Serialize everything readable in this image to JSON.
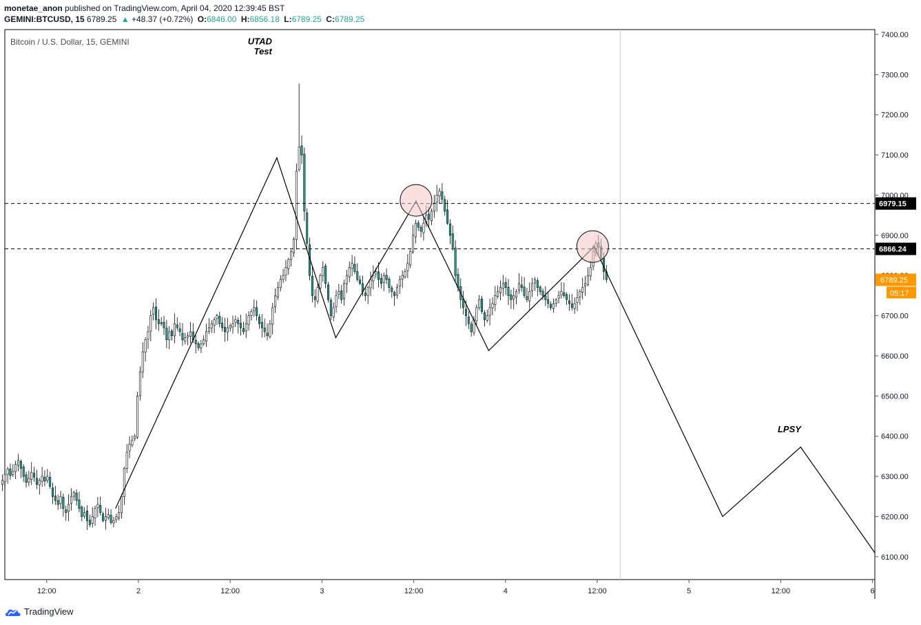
{
  "header": {
    "publisher": "monetae_anon",
    "published_text": "published on TradingView.com, April 04, 2020 12:39:45 BST",
    "symbol": "GEMINI:BTCUSD, 15",
    "last": "6789.25",
    "change": "+48.37 (+0.72%)",
    "o_label": "O:",
    "o_val": "6846.00",
    "h_label": "H:",
    "h_val": "6856.18",
    "l_label": "L:",
    "l_val": "6789.25",
    "c_label": "C:",
    "c_val": "6789.25"
  },
  "legend": "Bitcoin / U.S. Dollar, 15, GEMINI",
  "footer": {
    "brand": "TradingView"
  },
  "colors": {
    "up": "#26a69a",
    "down": "#ef5350",
    "candle_fill_up": "#ffffff",
    "line": "#000000",
    "marker_orange": "#ff9800",
    "circle_fill": "#f8c6c6"
  },
  "chart_data": {
    "type": "candlestick",
    "ylim": [
      6050,
      7420
    ],
    "y_ticks": [
      "7400.00",
      "7300.00",
      "7200.00",
      "7100.00",
      "7000.00",
      "6900.00",
      "6800.00",
      "6700.00",
      "6600.00",
      "6500.00",
      "6400.00",
      "6300.00",
      "6200.00",
      "6100.00"
    ],
    "x_ticks": [
      "12:00",
      "2",
      "12:00",
      "3",
      "12:00",
      "4",
      "12:00",
      "5",
      "12:00",
      "6"
    ],
    "x_tick_times": [
      -12,
      0,
      12,
      24,
      36,
      48,
      60,
      72,
      84,
      96
    ],
    "xlim": [
      -15,
      96.5
    ],
    "hlines": [
      {
        "value": 6979.15,
        "label": "6979.15"
      },
      {
        "value": 6866.24,
        "label": "6866.24"
      }
    ],
    "last_price": {
      "value": 6789.25,
      "label": "6789.25",
      "countdown": "05:17"
    },
    "vline_time": 63,
    "annotations": [
      {
        "text": "UTAD",
        "t": 14.3,
        "price": 7375
      },
      {
        "text": "Test",
        "t": 15.1,
        "price": 7350
      },
      {
        "text": "LPSY",
        "t": 83.6,
        "price": 6410
      }
    ],
    "circles": [
      {
        "t": 36.3,
        "price": 6987
      },
      {
        "t": 59.4,
        "price": 6872
      }
    ],
    "path": [
      {
        "t": -3.0,
        "price": 6220
      },
      {
        "t": 18.1,
        "price": 7093
      },
      {
        "t": 25.8,
        "price": 6645
      },
      {
        "t": 36.3,
        "price": 6985
      },
      {
        "t": 45.8,
        "price": 6613
      },
      {
        "t": 59.6,
        "price": 6872
      },
      {
        "t": 76.4,
        "price": 6200
      },
      {
        "t": 86.6,
        "price": 6373
      },
      {
        "t": 96.3,
        "price": 6110
      }
    ],
    "series": [
      {
        "name": "BTCUSD",
        "close": [
          6290,
          6305,
          6318,
          6302,
          6312,
          6330,
          6340,
          6320,
          6300,
          6285,
          6295,
          6310,
          6298,
          6280,
          6290,
          6300,
          6288,
          6300,
          6275,
          6250,
          6240,
          6230,
          6250,
          6220,
          6210,
          6230,
          6250,
          6260,
          6240,
          6220,
          6200,
          6210,
          6190,
          6180,
          6200,
          6220,
          6230,
          6210,
          6190,
          6200,
          6205,
          6185,
          6190,
          6200,
          6210,
          6250,
          6320,
          6360,
          6380,
          6390,
          6400,
          6500,
          6560,
          6610,
          6640,
          6660,
          6700,
          6720,
          6690,
          6680,
          6680,
          6670,
          6640,
          6660,
          6650,
          6680,
          6670,
          6660,
          6640,
          6645,
          6650,
          6660,
          6640,
          6630,
          6620,
          6630,
          6640,
          6660,
          6670,
          6680,
          6690,
          6700,
          6680,
          6670,
          6660,
          6670,
          6675,
          6680,
          6690,
          6680,
          6670,
          6660,
          6680,
          6700,
          6710,
          6720,
          6700,
          6680,
          6670,
          6660,
          6650,
          6680,
          6720,
          6750,
          6770,
          6790,
          6800,
          6820,
          6840,
          6860,
          6890,
          7060,
          7120,
          7100,
          6960,
          6880,
          6800,
          6750,
          6740,
          6770,
          6800,
          6820,
          6780,
          6740,
          6700,
          6720,
          6750,
          6760,
          6740,
          6780,
          6800,
          6820,
          6830,
          6810,
          6790,
          6780,
          6760,
          6750,
          6770,
          6790,
          6800,
          6810,
          6790,
          6780,
          6800,
          6790,
          6770,
          6760,
          6750,
          6770,
          6790,
          6800,
          6810,
          6830,
          6860,
          6900,
          6930,
          6920,
          6910,
          6930,
          6950,
          6940,
          6960,
          6980,
          7000,
          7010,
          6990,
          6960,
          6930,
          6900,
          6870,
          6800,
          6770,
          6740,
          6720,
          6700,
          6680,
          6660,
          6690,
          6720,
          6740,
          6710,
          6690,
          6700,
          6720,
          6730,
          6750,
          6760,
          6770,
          6780,
          6770,
          6750,
          6740,
          6750,
          6760,
          6780,
          6770,
          6750,
          6740,
          6760,
          6780,
          6790,
          6770,
          6760,
          6750,
          6740,
          6730,
          6720,
          6730,
          6740,
          6750,
          6760,
          6750,
          6740,
          6730,
          6720,
          6730,
          6745,
          6760,
          6770,
          6780,
          6800,
          6820,
          6860,
          6880,
          6870,
          6840,
          6810,
          6790
        ]
      }
    ]
  }
}
